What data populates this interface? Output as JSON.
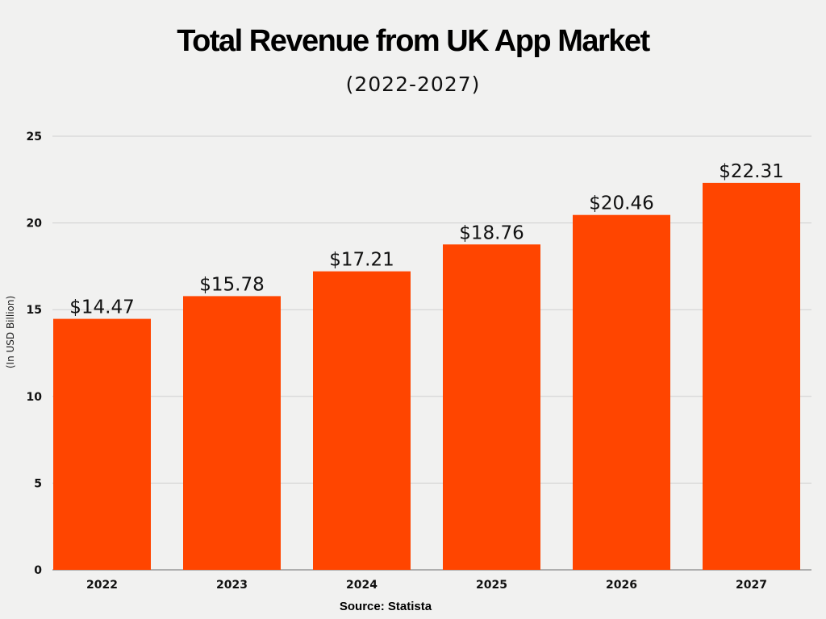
{
  "chart_data": {
    "type": "bar",
    "title": "Total Revenue from UK App Market",
    "subtitle": "(2022-2027)",
    "ylabel": "(In USD Billion)",
    "xlabel": "",
    "categories": [
      "2022",
      "2023",
      "2024",
      "2025",
      "2026",
      "2027"
    ],
    "values": [
      14.47,
      15.78,
      17.21,
      18.76,
      20.46,
      22.31
    ],
    "data_labels": [
      "$14.47",
      "$15.78",
      "$17.21",
      "$18.76",
      "$20.46",
      "$22.31"
    ],
    "ylim": [
      0,
      25
    ],
    "yticks": [
      0,
      5,
      10,
      15,
      20,
      25
    ],
    "grid": true,
    "bar_color": "#ff4500",
    "source": "Source: Statista"
  }
}
